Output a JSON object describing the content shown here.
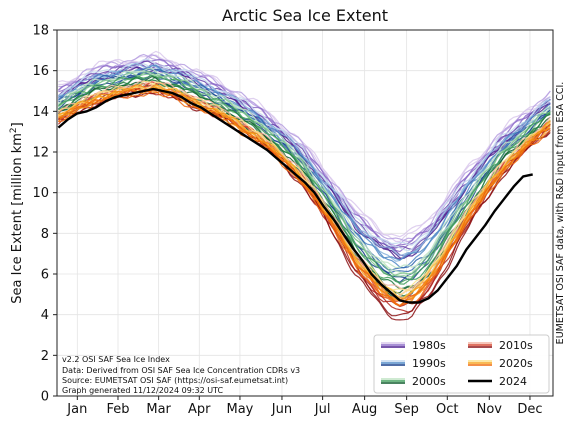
{
  "chart_data": {
    "type": "line",
    "title": "Arctic Sea Ice Extent",
    "ylabel_main": "Sea Ice Extent [million km",
    "ylabel_sup": "2",
    "ylabel_end": "]",
    "ylim": [
      0,
      18
    ],
    "yticks": [
      "0",
      "2",
      "4",
      "6",
      "8",
      "10",
      "12",
      "14",
      "16",
      "18"
    ],
    "ytick_values": [
      0,
      2,
      4,
      6,
      8,
      10,
      12,
      14,
      16,
      18
    ],
    "xlim": [
      0,
      366
    ],
    "months": [
      "Jan",
      "Feb",
      "Mar",
      "Apr",
      "May",
      "Jun",
      "Jul",
      "Aug",
      "Sep",
      "Oct",
      "Nov",
      "Dec"
    ],
    "month_positions": [
      15,
      45,
      75,
      105,
      135,
      166,
      196,
      227,
      258,
      288,
      319,
      349
    ],
    "grid": true,
    "legend_placement": "bottom-right",
    "notes": [
      "v2.2 OSI SAF Sea Ice Index",
      "Data: Derived from OSI SAF Sea Ice Concentration CDRs v3",
      "Source: EUMETSAT OSI SAF (https://osi-saf.eumetsat.int)",
      "Graph generated 11/12/2024 09:32 UTC"
    ],
    "credit": "EUMETSAT OSI SAF data, with R&D input from ESA CCI.",
    "legend": [
      {
        "label": "1980s",
        "colors": [
          "#d9c8ec",
          "#8c6bc7",
          "#4b1f8f"
        ]
      },
      {
        "label": "2010s",
        "colors": [
          "#f4b4a4",
          "#d6452f",
          "#8b0f12"
        ]
      },
      {
        "label": "1990s",
        "colors": [
          "#c3d9ef",
          "#4f88c6",
          "#163f8a"
        ]
      },
      {
        "label": "2020s",
        "colors": [
          "#fbe08a",
          "#f7a21b",
          "#ef6a0c"
        ]
      },
      {
        "label": "2000s",
        "colors": [
          "#bfe4c4",
          "#3f9e5a",
          "#0e5a2c"
        ]
      },
      {
        "label": "2024",
        "colors": [
          "#000000"
        ]
      }
    ],
    "decades": [
      {
        "name": "1980s",
        "offset_min": 0.75,
        "offset_max": 1.35,
        "sep_min": 6.9,
        "sep_max": 7.9,
        "colors": [
          "#d9c8ec",
          "#b59ee0",
          "#8c6bc7",
          "#6a46ad",
          "#4b1f8f"
        ]
      },
      {
        "name": "1990s",
        "offset_min": 0.35,
        "offset_max": 1.0,
        "sep_min": 5.8,
        "sep_max": 7.4,
        "colors": [
          "#c3d9ef",
          "#86b1dc",
          "#4f88c6",
          "#2e65ab",
          "#163f8a"
        ]
      },
      {
        "name": "2000s",
        "offset_min": 0.0,
        "offset_max": 0.6,
        "sep_min": 4.9,
        "sep_max": 6.4,
        "colors": [
          "#bfe4c4",
          "#7cc48b",
          "#3f9e5a",
          "#20793f",
          "#0e5a2c"
        ]
      },
      {
        "name": "2010s",
        "offset_min": -0.45,
        "offset_max": 0.05,
        "sep_min": 3.9,
        "sep_max": 5.3,
        "colors": [
          "#f4b4a4",
          "#e87c66",
          "#d6452f",
          "#b2231b",
          "#8b0f12"
        ]
      },
      {
        "name": "2020s",
        "offset_min": -0.4,
        "offset_max": -0.05,
        "sep_min": 4.5,
        "sep_max": 5.3,
        "colors": [
          "#fbe08a",
          "#f9c251",
          "#f7a21b",
          "#f38511",
          "#ef6a0c"
        ]
      }
    ],
    "series_2024": {
      "name": "2024",
      "x": [
        1,
        8,
        15,
        22,
        29,
        36,
        43,
        50,
        57,
        64,
        71,
        78,
        85,
        92,
        99,
        106,
        113,
        120,
        127,
        134,
        141,
        148,
        155,
        162,
        169,
        176,
        183,
        190,
        197,
        204,
        211,
        218,
        225,
        232,
        239,
        246,
        253,
        260,
        267,
        274,
        281,
        288,
        295,
        302,
        309,
        316,
        323,
        330,
        337,
        344,
        351
      ],
      "y": [
        13.2,
        13.6,
        13.9,
        14.0,
        14.2,
        14.5,
        14.7,
        14.8,
        14.9,
        15.0,
        15.1,
        15.0,
        14.9,
        14.7,
        14.4,
        14.2,
        13.9,
        13.6,
        13.3,
        13.0,
        12.7,
        12.4,
        12.1,
        11.7,
        11.3,
        10.9,
        10.5,
        10.0,
        9.3,
        8.7,
        8.0,
        7.3,
        6.7,
        6.0,
        5.5,
        5.1,
        4.7,
        4.6,
        4.6,
        4.8,
        5.2,
        5.8,
        6.4,
        7.2,
        7.8,
        8.4,
        9.1,
        9.7,
        10.3,
        10.8,
        10.9
      ]
    },
    "envelope": {
      "x": [
        1,
        30,
        60,
        72,
        90,
        120,
        150,
        180,
        200,
        220,
        240,
        252,
        262,
        275,
        300,
        330,
        366
      ],
      "y": [
        13.9,
        14.9,
        15.3,
        15.4,
        15.0,
        14.1,
        12.9,
        11.2,
        9.6,
        7.9,
        6.8,
        6.5,
        6.7,
        7.4,
        9.6,
        11.8,
        13.7
      ]
    }
  }
}
